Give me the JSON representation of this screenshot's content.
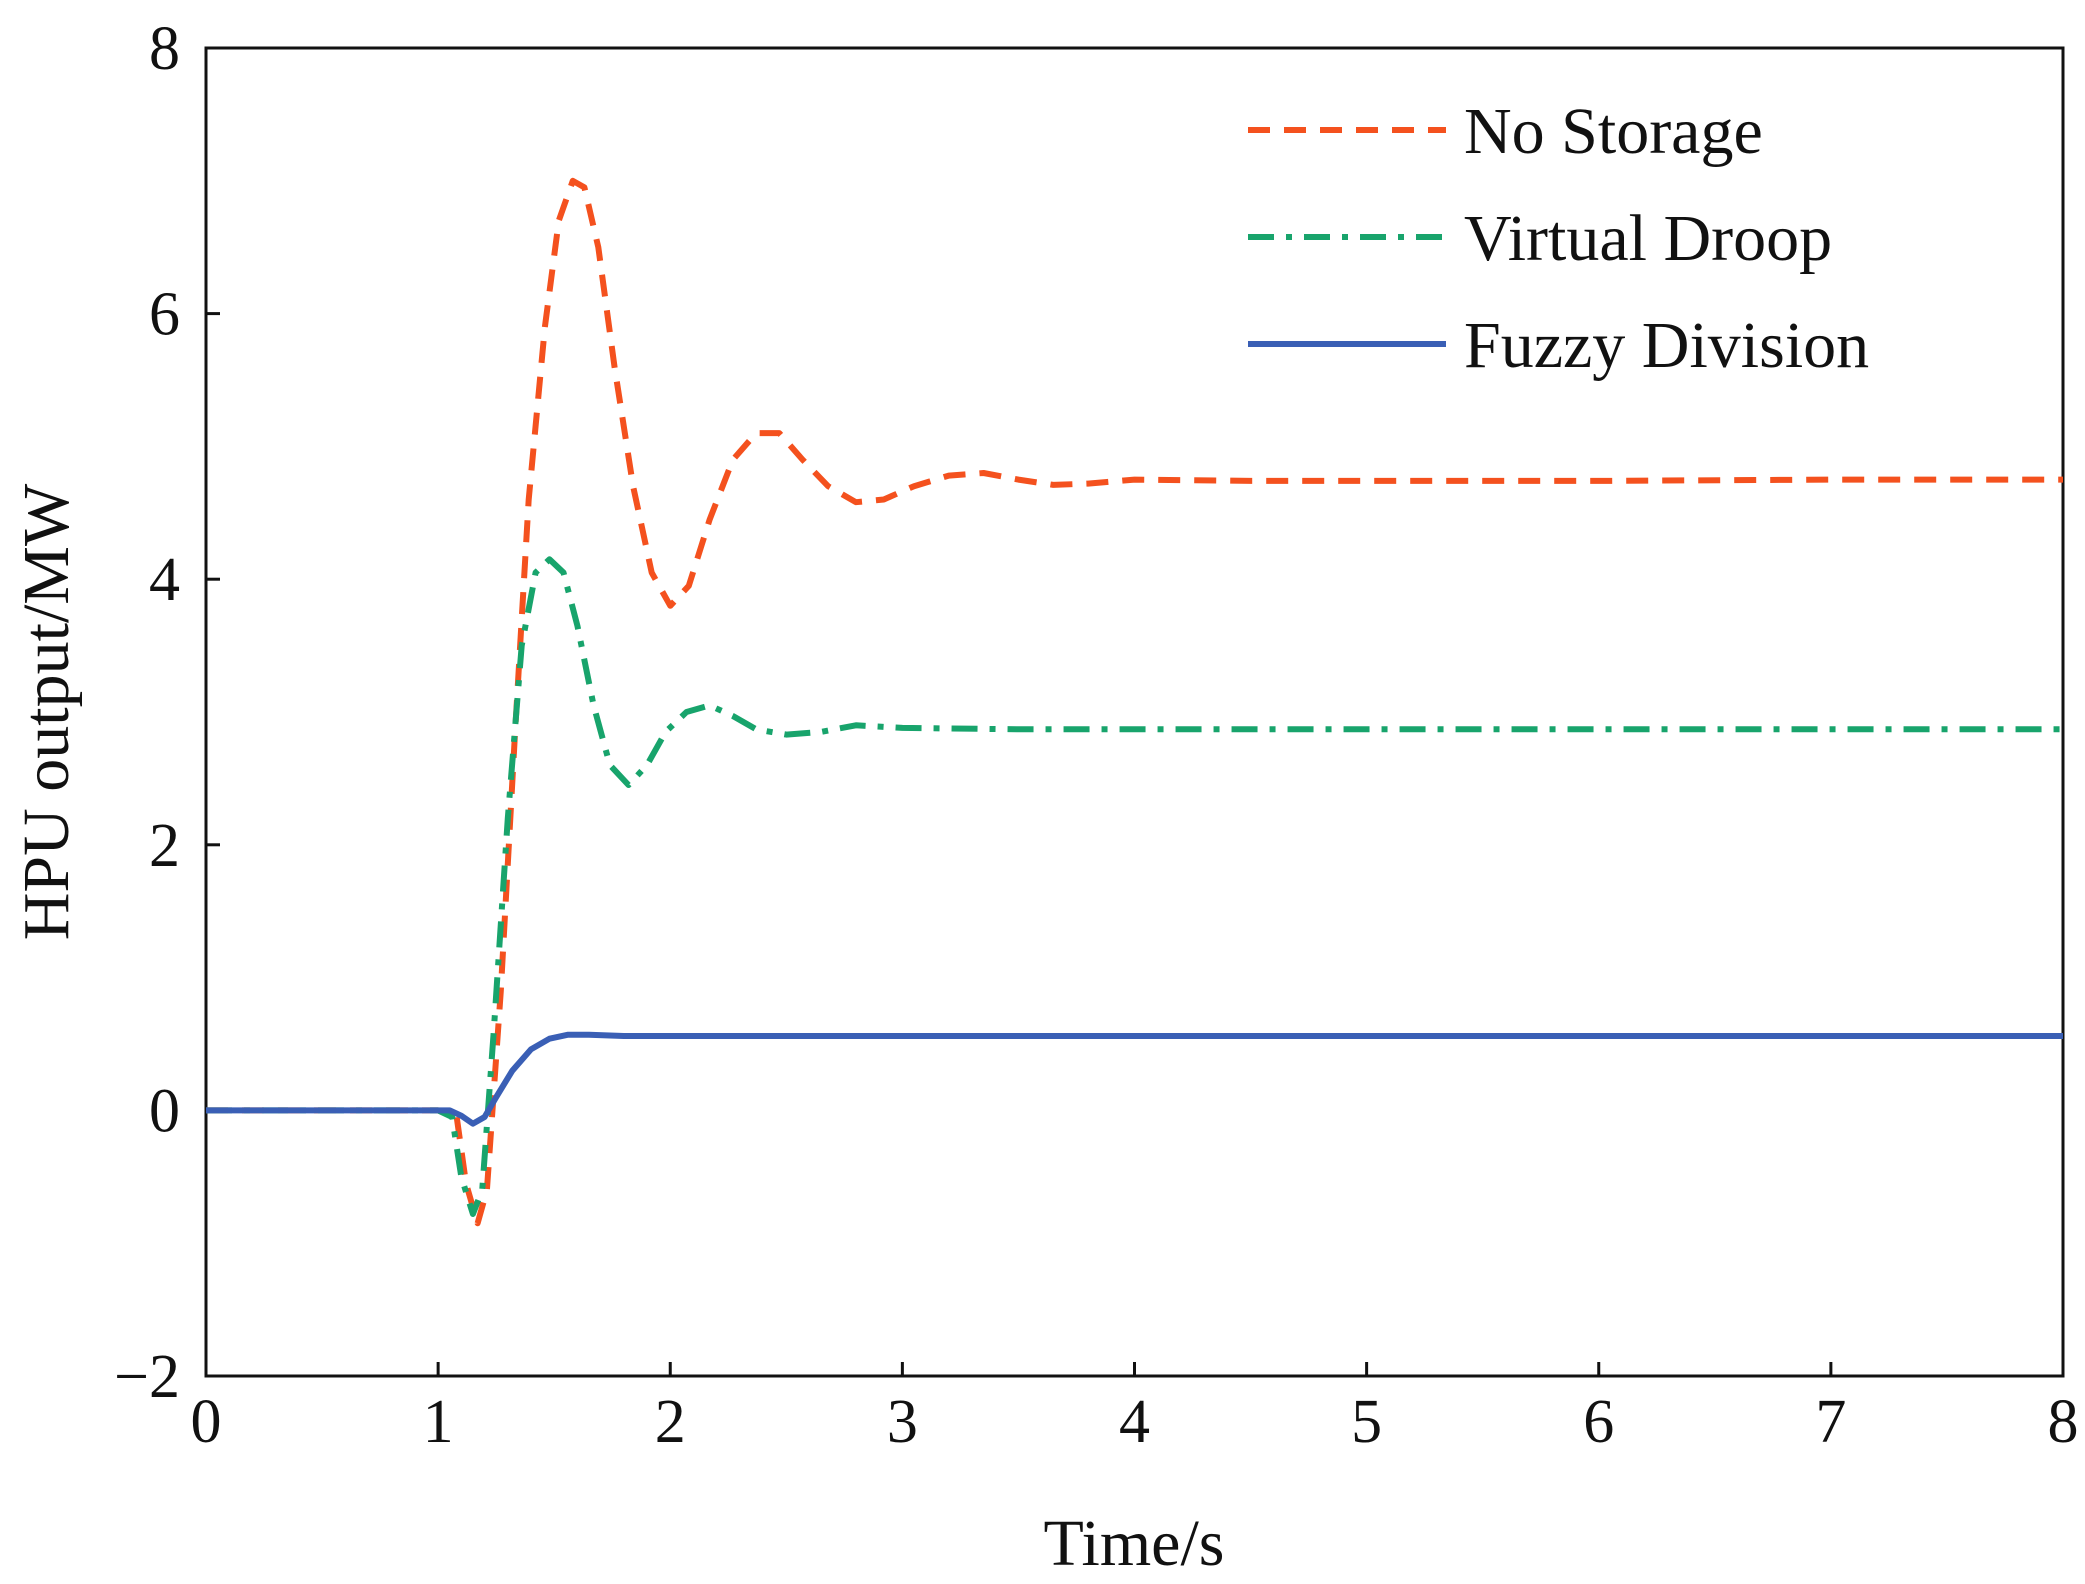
{
  "chart_data": {
    "type": "line",
    "title": "",
    "xlabel": "Time/s",
    "ylabel": "HPU output/MW",
    "xlim": [
      0,
      8
    ],
    "ylim": [
      -2,
      8
    ],
    "x_ticks": [
      "0",
      "1",
      "2",
      "3",
      "4",
      "5",
      "6",
      "7",
      "8"
    ],
    "y_ticks": [
      "−2",
      "0",
      "2",
      "4",
      "6",
      "8"
    ],
    "legend_position": "top-right",
    "grid": false,
    "series": [
      {
        "name": "No Storage",
        "color": "#F4511E",
        "style": "dashed",
        "points": [
          [
            0,
            0
          ],
          [
            1.0,
            0
          ],
          [
            1.08,
            -0.05
          ],
          [
            1.12,
            -0.55
          ],
          [
            1.17,
            -0.85
          ],
          [
            1.21,
            -0.6
          ],
          [
            1.27,
            0.9
          ],
          [
            1.33,
            2.8
          ],
          [
            1.39,
            4.6
          ],
          [
            1.46,
            5.9
          ],
          [
            1.52,
            6.7
          ],
          [
            1.58,
            7.0
          ],
          [
            1.63,
            6.95
          ],
          [
            1.69,
            6.5
          ],
          [
            1.76,
            5.6
          ],
          [
            1.84,
            4.7
          ],
          [
            1.92,
            4.05
          ],
          [
            2.0,
            3.8
          ],
          [
            2.08,
            3.95
          ],
          [
            2.17,
            4.45
          ],
          [
            2.27,
            4.9
          ],
          [
            2.37,
            5.1
          ],
          [
            2.47,
            5.1
          ],
          [
            2.57,
            4.9
          ],
          [
            2.68,
            4.7
          ],
          [
            2.8,
            4.58
          ],
          [
            2.92,
            4.6
          ],
          [
            3.05,
            4.7
          ],
          [
            3.2,
            4.78
          ],
          [
            3.35,
            4.8
          ],
          [
            3.5,
            4.75
          ],
          [
            3.65,
            4.71
          ],
          [
            3.8,
            4.72
          ],
          [
            4.0,
            4.75
          ],
          [
            4.5,
            4.74
          ],
          [
            5.0,
            4.74
          ],
          [
            6.0,
            4.74
          ],
          [
            7.0,
            4.75
          ],
          [
            8.0,
            4.75
          ]
        ]
      },
      {
        "name": "Virtual Droop",
        "color": "#18A46C",
        "style": "dash-dot",
        "points": [
          [
            0,
            0
          ],
          [
            1.0,
            0
          ],
          [
            1.06,
            -0.05
          ],
          [
            1.1,
            -0.5
          ],
          [
            1.15,
            -0.78
          ],
          [
            1.19,
            -0.6
          ],
          [
            1.24,
            0.6
          ],
          [
            1.3,
            2.2
          ],
          [
            1.36,
            3.5
          ],
          [
            1.42,
            4.05
          ],
          [
            1.48,
            4.15
          ],
          [
            1.54,
            4.05
          ],
          [
            1.6,
            3.65
          ],
          [
            1.67,
            3.05
          ],
          [
            1.74,
            2.6
          ],
          [
            1.82,
            2.45
          ],
          [
            1.9,
            2.6
          ],
          [
            1.98,
            2.85
          ],
          [
            2.07,
            3.0
          ],
          [
            2.17,
            3.05
          ],
          [
            2.27,
            2.97
          ],
          [
            2.37,
            2.87
          ],
          [
            2.5,
            2.83
          ],
          [
            2.65,
            2.85
          ],
          [
            2.8,
            2.9
          ],
          [
            3.0,
            2.88
          ],
          [
            3.5,
            2.87
          ],
          [
            4.0,
            2.87
          ],
          [
            5.0,
            2.87
          ],
          [
            6.0,
            2.87
          ],
          [
            7.0,
            2.87
          ],
          [
            8.0,
            2.87
          ]
        ]
      },
      {
        "name": "Fuzzy Division",
        "color": "#3A5FB5",
        "style": "solid",
        "points": [
          [
            0,
            0
          ],
          [
            1.05,
            0
          ],
          [
            1.1,
            -0.04
          ],
          [
            1.15,
            -0.1
          ],
          [
            1.2,
            -0.05
          ],
          [
            1.25,
            0.1
          ],
          [
            1.32,
            0.3
          ],
          [
            1.4,
            0.46
          ],
          [
            1.48,
            0.54
          ],
          [
            1.56,
            0.57
          ],
          [
            1.65,
            0.57
          ],
          [
            1.8,
            0.56
          ],
          [
            2.0,
            0.56
          ],
          [
            3.0,
            0.56
          ],
          [
            4.0,
            0.56
          ],
          [
            5.0,
            0.56
          ],
          [
            6.0,
            0.56
          ],
          [
            7.0,
            0.56
          ],
          [
            8.0,
            0.56
          ]
        ]
      }
    ]
  }
}
